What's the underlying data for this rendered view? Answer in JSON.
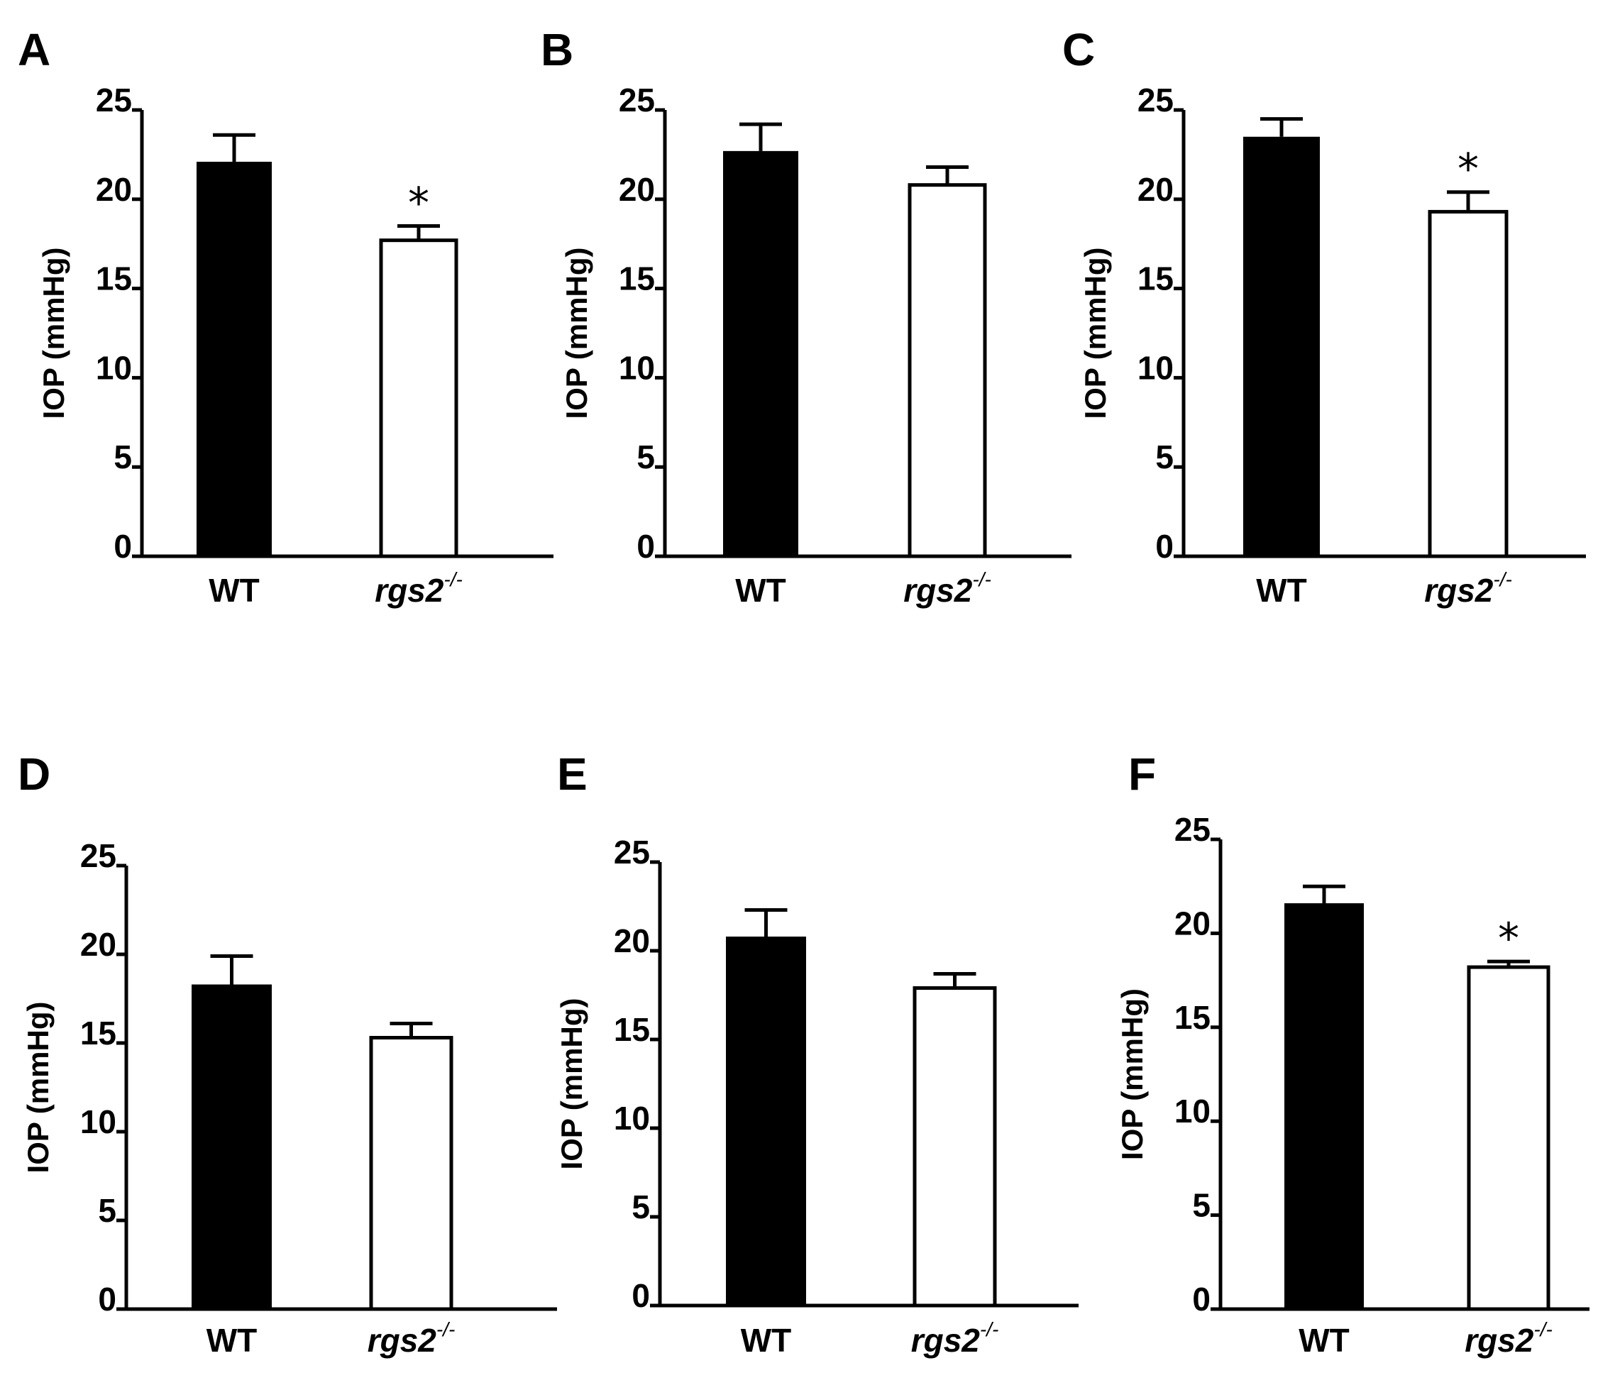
{
  "chart_data": [
    {
      "type": "bar",
      "panel": "A",
      "ylabel": "IOP (mmHg)",
      "ylim": [
        0,
        25
      ],
      "yticks": [
        "0",
        "5",
        "10",
        "15",
        "20",
        "25"
      ],
      "categories": [
        {
          "name": "WT",
          "sup": ""
        },
        {
          "name": "rgs2",
          "sup": "-/-"
        }
      ],
      "values": [
        22.1,
        17.7
      ],
      "errors": [
        1.5,
        0.8
      ],
      "fills": [
        "#000000",
        "#ffffff"
      ],
      "significance": [
        "",
        "*"
      ]
    },
    {
      "type": "bar",
      "panel": "B",
      "ylabel": "IOP (mmHg)",
      "ylim": [
        0,
        25
      ],
      "yticks": [
        "0",
        "5",
        "10",
        "15",
        "20",
        "25"
      ],
      "categories": [
        {
          "name": "WT",
          "sup": ""
        },
        {
          "name": "rgs2",
          "sup": "-/-"
        }
      ],
      "values": [
        22.7,
        20.8
      ],
      "errors": [
        1.5,
        1.0
      ],
      "fills": [
        "#000000",
        "#ffffff"
      ],
      "significance": [
        "",
        ""
      ]
    },
    {
      "type": "bar",
      "panel": "C",
      "ylabel": "IOP (mmHg)",
      "ylim": [
        0,
        25
      ],
      "yticks": [
        "0",
        "5",
        "10",
        "15",
        "20",
        "25"
      ],
      "categories": [
        {
          "name": "WT",
          "sup": ""
        },
        {
          "name": "rgs2",
          "sup": "-/-"
        }
      ],
      "values": [
        23.5,
        19.3
      ],
      "errors": [
        1.0,
        1.1
      ],
      "fills": [
        "#000000",
        "#ffffff"
      ],
      "significance": [
        "",
        "*"
      ]
    },
    {
      "type": "bar",
      "panel": "D",
      "ylabel": "IOP (mmHg)",
      "ylim": [
        0,
        25
      ],
      "yticks": [
        "0",
        "5",
        "10",
        "15",
        "20",
        "25"
      ],
      "categories": [
        {
          "name": "WT",
          "sup": ""
        },
        {
          "name": "rgs2",
          "sup": "-/-"
        }
      ],
      "values": [
        18.3,
        15.3
      ],
      "errors": [
        1.6,
        0.8
      ],
      "fills": [
        "#000000",
        "#ffffff"
      ],
      "significance": [
        "",
        ""
      ]
    },
    {
      "type": "bar",
      "panel": "E",
      "ylabel": "IOP (mmHg)",
      "ylim": [
        0,
        25
      ],
      "yticks": [
        "0",
        "5",
        "10",
        "15",
        "20",
        "25"
      ],
      "categories": [
        {
          "name": "WT",
          "sup": ""
        },
        {
          "name": "rgs2",
          "sup": "-/-"
        }
      ],
      "values": [
        20.8,
        17.9
      ],
      "errors": [
        1.5,
        0.8
      ],
      "fills": [
        "#000000",
        "#ffffff"
      ],
      "significance": [
        "",
        ""
      ]
    },
    {
      "type": "bar",
      "panel": "F",
      "ylabel": "IOP (mmHg)",
      "ylim": [
        0,
        25
      ],
      "yticks": [
        "0",
        "5",
        "10",
        "15",
        "20",
        "25"
      ],
      "categories": [
        {
          "name": "WT",
          "sup": ""
        },
        {
          "name": "rgs2",
          "sup": "-/-"
        }
      ],
      "values": [
        21.6,
        18.2
      ],
      "errors": [
        0.9,
        0.3
      ],
      "fills": [
        "#000000",
        "#ffffff"
      ],
      "significance": [
        "",
        "*"
      ]
    }
  ]
}
